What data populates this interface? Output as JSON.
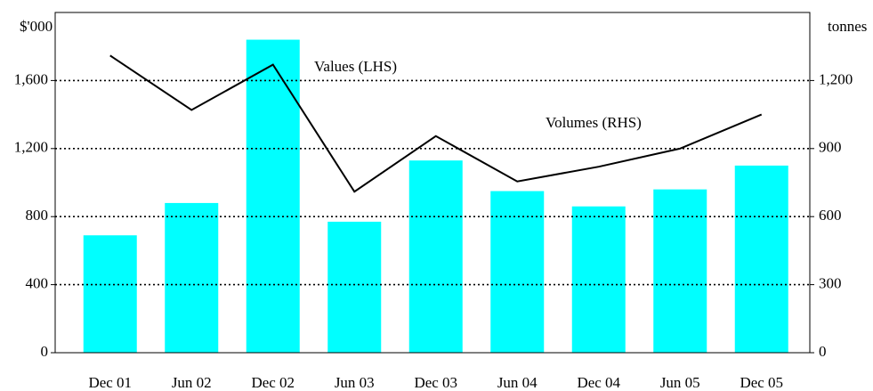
{
  "chart_data": {
    "type": "bar-line",
    "y_label": "$'000",
    "y2_label": "tonnes",
    "annotations": [
      "Values (LHS)",
      "Volumes (RHS)"
    ],
    "categories": [
      "Dec 01",
      "Jun 02",
      "Dec 02",
      "Jun 03",
      "Dec 03",
      "Jun 04",
      "Dec 04",
      "Jun 05",
      "Dec 05"
    ],
    "series": [
      {
        "name": "Values (LHS)",
        "type": "bar",
        "color": "#00ffff",
        "values": [
          690,
          880,
          1840,
          770,
          1130,
          950,
          860,
          960,
          1100
        ]
      },
      {
        "name": "Volumes (RHS)",
        "type": "line",
        "axis": "y2",
        "color": "#000000",
        "values": [
          1310,
          1070,
          1270,
          710,
          955,
          755,
          820,
          900,
          1050
        ]
      }
    ],
    "ylim": [
      0,
      2000
    ],
    "yticks": [
      0,
      400,
      800,
      {
        "value": 1200,
        "label": "1,200"
      },
      {
        "value": 1600,
        "label": "1,600"
      }
    ],
    "y2lim": [
      0,
      1500
    ],
    "y2ticks": [
      0,
      300,
      600,
      900,
      {
        "value": 1200,
        "label": "1,200"
      }
    ],
    "grid": true
  }
}
